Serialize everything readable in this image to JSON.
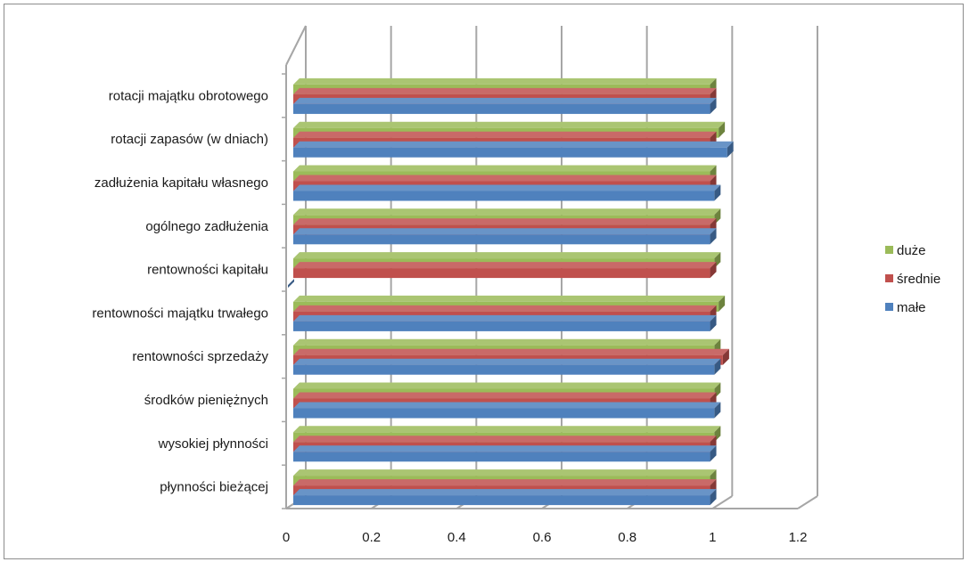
{
  "chart_data": {
    "type": "bar",
    "orientation": "horizontal",
    "style": "3d-clustered",
    "categories": [
      "płynności bieżącej",
      "wysokiej płynności",
      "środków pieniężnych",
      "rentowności sprzedaży",
      "rentowności majątku trwałego",
      "rentowności kapitału",
      "ogólnego zadłużenia",
      "zadłużenia kapitału własnego",
      "rotacji zapasów (w dniach)",
      "rotacji majątku obrotowego"
    ],
    "series": [
      {
        "name": "małe",
        "color": "#4f81bd",
        "values": [
          0.99,
          0.99,
          1.0,
          1.0,
          0.99,
          0.0,
          0.99,
          1.0,
          1.03,
          0.99
        ]
      },
      {
        "name": "średnie",
        "color": "#c0504d",
        "values": [
          0.99,
          0.99,
          0.99,
          1.02,
          0.99,
          0.99,
          0.99,
          0.99,
          0.99,
          0.99
        ]
      },
      {
        "name": "duże",
        "color": "#9bbb59",
        "values": [
          0.99,
          1.0,
          1.0,
          1.0,
          1.01,
          1.0,
          1.0,
          0.99,
          1.01,
          0.99
        ]
      }
    ],
    "xlim": [
      0,
      1.2
    ],
    "xticks": [
      "0",
      "0.2",
      "0.4",
      "0.6",
      "0.8",
      "1",
      "1.2"
    ],
    "grid": true,
    "legend_position": "right",
    "title": "",
    "xlabel": "",
    "ylabel": ""
  }
}
